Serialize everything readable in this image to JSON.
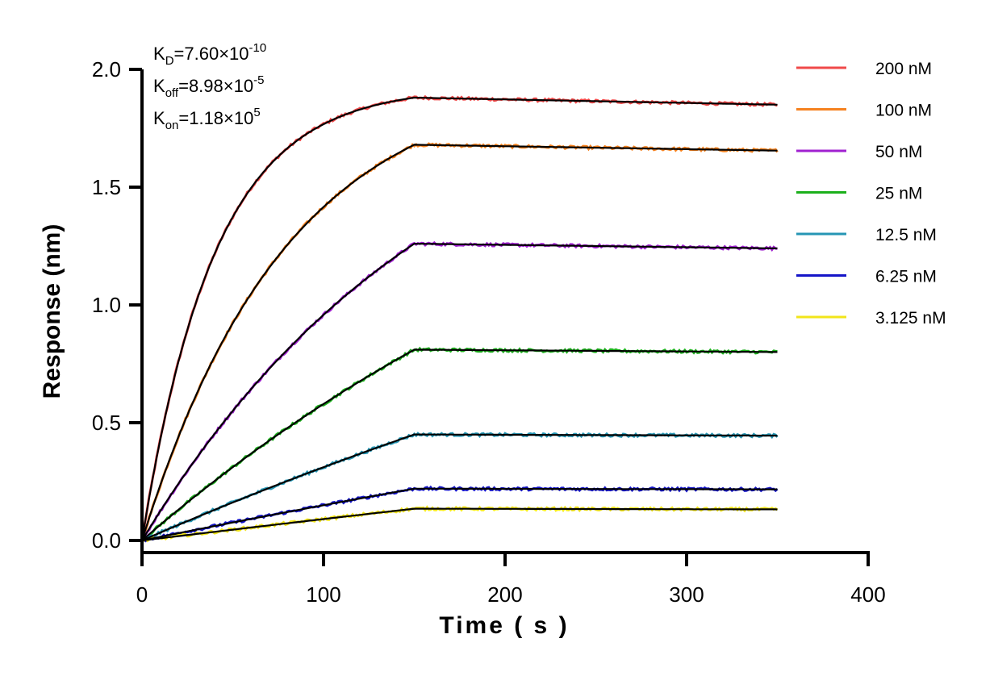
{
  "chart_data": {
    "type": "line",
    "xlabel": "Time ( s )",
    "ylabel": "Response (nm)",
    "xlim": [
      0,
      400
    ],
    "ylim": [
      0,
      2.0
    ],
    "x_ticks": [
      "0",
      "100",
      "200",
      "300",
      "400"
    ],
    "y_ticks": [
      "0.0",
      "0.5",
      "1.0",
      "1.5",
      "2.0"
    ],
    "grid": false,
    "legend_position": "top-right",
    "association_end": 150,
    "dissociation_end": 350,
    "fit_color": "#000000",
    "series": [
      {
        "name": "200 nM",
        "color": "#F04A4A",
        "plateau": 1.88,
        "k": 0.025,
        "end": 1.85
      },
      {
        "name": "100 nM",
        "color": "#F58220",
        "plateau": 1.68,
        "k": 0.0125,
        "end": 1.655
      },
      {
        "name": "50 nM",
        "color": "#A020D0",
        "plateau": 1.26,
        "k": 0.006,
        "end": 1.24
      },
      {
        "name": "25 nM",
        "color": "#1CB01C",
        "plateau": 0.81,
        "k": 0.003,
        "end": 0.8
      },
      {
        "name": "12.5 nM",
        "color": "#2596B4",
        "plateau": 0.45,
        "k": 0.0015,
        "end": 0.445
      },
      {
        "name": "6.25 nM",
        "color": "#1515C8",
        "plateau": 0.22,
        "k": 0.0008,
        "end": 0.217
      },
      {
        "name": "3.125 nM",
        "color": "#F2E51A",
        "plateau": 0.135,
        "k": 0.0004,
        "end": 0.132
      }
    ]
  },
  "kinetics": [
    {
      "main": "K",
      "sub": "D",
      "eq": "=7.60×10",
      "exp": "-10"
    },
    {
      "main": "K",
      "sub": "off",
      "eq": "=8.98×10",
      "exp": "-5"
    },
    {
      "main": "K",
      "sub": "on",
      "eq": "=1.18×10",
      "exp": "5"
    }
  ]
}
